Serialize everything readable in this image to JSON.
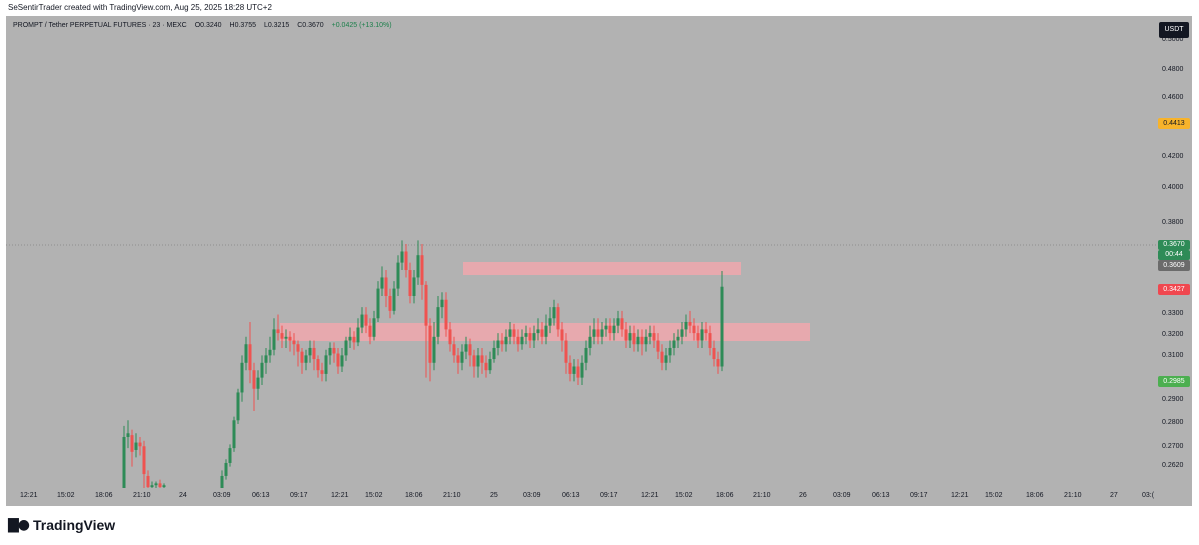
{
  "header": {
    "caption": "SeSentirTrader created with TradingView.com, Aug 25, 2025 18:28 UTC+2"
  },
  "legend": {
    "symbol": "PROMPT / Tether PERPETUAL FUTURES · 23 · MEXC",
    "open": "O0.3240",
    "high": "H0.3755",
    "low": "L0.3215",
    "close": "C0.3670",
    "change": "+0.0425 (+13.10%)"
  },
  "currency": "USDT",
  "price_ticks": [
    "0.5000",
    "0.4800",
    "0.4600",
    "0.4200",
    "0.4000",
    "0.3800",
    "0.3300",
    "0.3200",
    "0.3100",
    "0.2900",
    "0.2800",
    "0.2700",
    "0.2620"
  ],
  "price_tags": {
    "target": {
      "value": "0.4413",
      "bg": "#f7b32b",
      "fg": "#131722"
    },
    "last": {
      "value": "0.3670",
      "bg": "#2e8b57",
      "fg": "#ffffff"
    },
    "countdown": {
      "value": "00:44",
      "bg": "#2e8b57",
      "fg": "#ffffff"
    },
    "prev": {
      "value": "0.3609",
      "bg": "#6b6b6b",
      "fg": "#ffffff"
    },
    "resistance": {
      "value": "0.3427",
      "bg": "#f0474f",
      "fg": "#ffffff"
    },
    "support": {
      "value": "0.2985",
      "bg": "#4caf50",
      "fg": "#ffffff"
    }
  },
  "time_labels": [
    "12:21",
    "15:02",
    "18:06",
    "21:10",
    "24",
    "03:09",
    "06:13",
    "09:17",
    "12:21",
    "15:02",
    "18:06",
    "21:10",
    "25",
    "03:09",
    "06:13",
    "09:17",
    "12:21",
    "15:02",
    "18:06",
    "21:10",
    "26",
    "03:09",
    "06:13",
    "09:17",
    "12:21",
    "15:02",
    "18:06",
    "21:10",
    "27",
    "03:("
  ],
  "colors": {
    "up": "#2e8b57",
    "down": "#ef5350",
    "zone": "#f4a6ad",
    "chart_bg": "#b2b2b2"
  },
  "footer": {
    "logo_text": "TradingView"
  }
}
